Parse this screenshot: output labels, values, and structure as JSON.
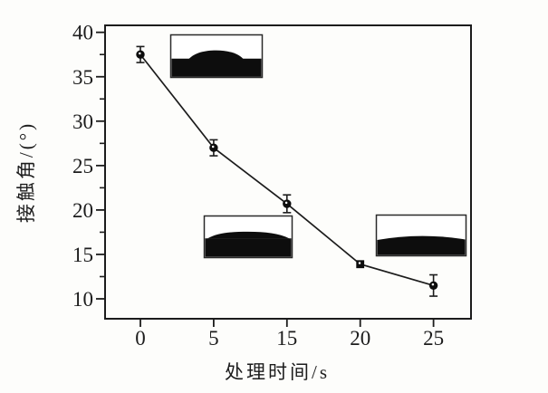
{
  "figure": {
    "background": "#fdfdfb",
    "ink_color": "#1c1c1c"
  },
  "chart_data": {
    "type": "line",
    "title": "",
    "xlabel": "处理时间/s",
    "ylabel": "接触角/(°)",
    "x_tick_labels": [
      "0",
      "5",
      "15",
      "20",
      "25"
    ],
    "categories": [
      0,
      5,
      15,
      20,
      25
    ],
    "series": [
      {
        "name": "接触角",
        "values": [
          37.5,
          27.0,
          20.7,
          13.9,
          11.5
        ],
        "errors": [
          0.9,
          0.9,
          1.0,
          0,
          1.2
        ],
        "markers": [
          "circle",
          "circle",
          "circle",
          "square",
          "circle"
        ]
      }
    ],
    "ylim": [
      8,
      41
    ],
    "y_major_ticks": [
      10,
      15,
      20,
      25,
      30,
      35,
      40
    ],
    "y_minor_ticks": [
      12.5,
      17.5,
      22.5,
      27.5,
      32.5,
      37.5
    ],
    "grid": false,
    "legend": false,
    "insets": [
      {
        "name": "droplet-photo-0s",
        "position": "top-center",
        "description": "sessile water drop photo, domed droplet on dark substrate (0 s)"
      },
      {
        "name": "droplet-photo-15s",
        "position": "bottom-center",
        "description": "sessile water drop photo, flattened wide droplet (15 s)"
      },
      {
        "name": "droplet-photo-25s",
        "position": "bottom-right",
        "description": "sessile water drop photo, almost fully spread droplet (25 s)"
      }
    ]
  }
}
